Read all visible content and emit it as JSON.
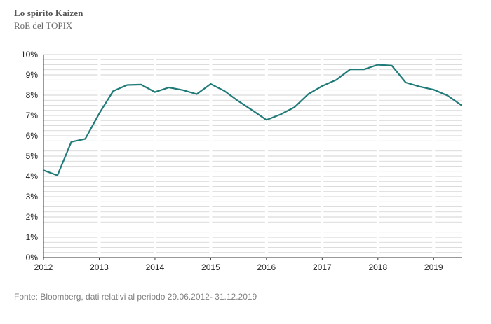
{
  "header": {
    "title": "Lo spirito Kaizen",
    "subtitle": "RoE del TOPIX"
  },
  "footer": {
    "source": "Fonte: Bloomberg, dati relativi al periodo 29.06.2012- 31.12.2019"
  },
  "colors": {
    "line": "#1f7a78",
    "gridline": "#d0d0d0",
    "axis": "#333333"
  },
  "chart_data": {
    "type": "line",
    "title": "Lo spirito Kaizen",
    "subtitle": "RoE del TOPIX",
    "xlabel": "",
    "ylabel": "",
    "xlim": [
      2012,
      2019.5
    ],
    "ylim": [
      0,
      10
    ],
    "x_ticks": [
      "2012",
      "2013",
      "2014",
      "2015",
      "2016",
      "2017",
      "2018",
      "2019"
    ],
    "y_ticks": [
      "0%",
      "1%",
      "2%",
      "3%",
      "4%",
      "5%",
      "6%",
      "7%",
      "8%",
      "9%",
      "10%"
    ],
    "grid": true,
    "legend": "none",
    "series": [
      {
        "x": [
          2012.0,
          2012.25,
          2012.5,
          2012.75,
          2013.0,
          2013.25,
          2013.5,
          2013.75,
          2014.0,
          2014.25,
          2014.5,
          2014.75,
          2015.0,
          2015.25,
          2015.5,
          2015.75,
          2016.0,
          2016.25,
          2016.5,
          2016.75,
          2017.0,
          2017.25,
          2017.5,
          2017.75,
          2018.0,
          2018.25,
          2018.5,
          2018.75,
          2019.0,
          2019.25,
          2019.5
        ],
        "values": [
          4.3,
          4.05,
          5.7,
          5.85,
          7.1,
          8.2,
          8.5,
          8.52,
          8.15,
          8.38,
          8.25,
          8.05,
          8.55,
          8.2,
          7.7,
          7.25,
          6.78,
          7.05,
          7.4,
          8.05,
          8.45,
          8.75,
          9.27,
          9.27,
          9.5,
          9.45,
          8.62,
          8.42,
          8.27,
          7.98,
          7.5
        ]
      }
    ]
  }
}
